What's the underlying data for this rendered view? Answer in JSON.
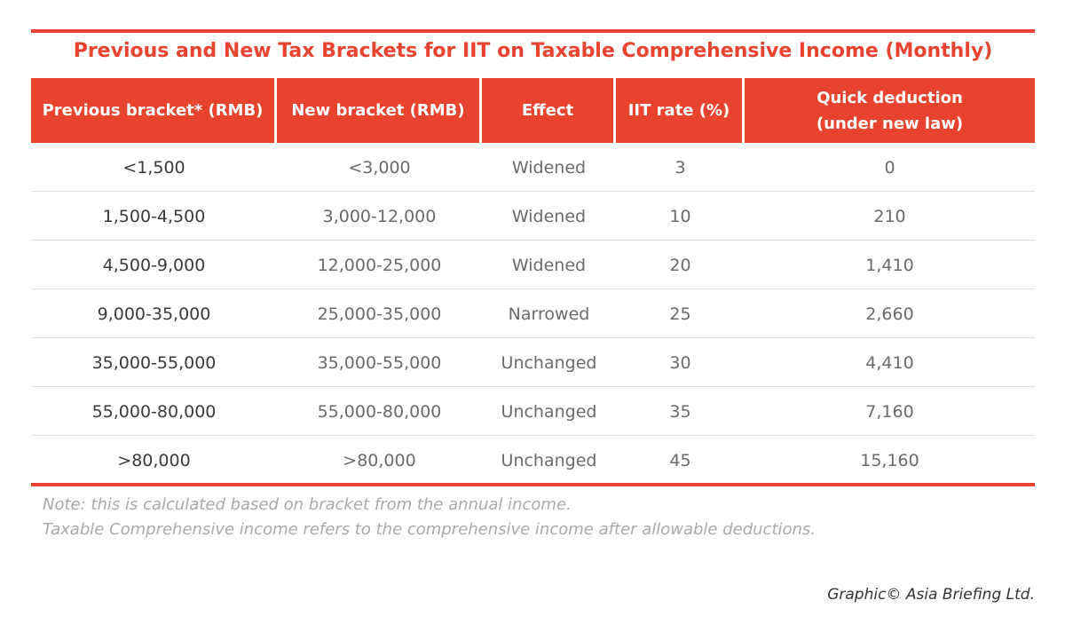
{
  "title": "Previous and New Tax Brackets for IIT on Taxable Comprehensive Income (Monthly)",
  "table": {
    "headers": [
      "Previous bracket* (RMB)",
      "New bracket (RMB)",
      "Effect",
      "IIT rate (%)",
      "Quick deduction\n(under new law)"
    ],
    "rows": [
      [
        "<1,500",
        "<3,000",
        "Widened",
        "3",
        "0"
      ],
      [
        "1,500-4,500",
        "3,000-12,000",
        "Widened",
        "10",
        "210"
      ],
      [
        "4,500-9,000",
        "12,000-25,000",
        "Widened",
        "20",
        "1,410"
      ],
      [
        "9,000-35,000",
        "25,000-35,000",
        "Narrowed",
        "25",
        "2,660"
      ],
      [
        "35,000-55,000",
        "35,000-55,000",
        "Unchanged",
        "30",
        "4,410"
      ],
      [
        "55,000-80,000",
        "55,000-80,000",
        "Unchanged",
        "35",
        "7,160"
      ],
      [
        ">80,000",
        ">80,000",
        "Unchanged",
        "45",
        "15,160"
      ]
    ]
  },
  "notes": [
    "Note: this is calculated based on bracket from the annual income.",
    "Taxable Comprehensive income refers to the comprehensive income after allowable deductions."
  ],
  "credit": "Graphic© Asia Briefing Ltd."
}
